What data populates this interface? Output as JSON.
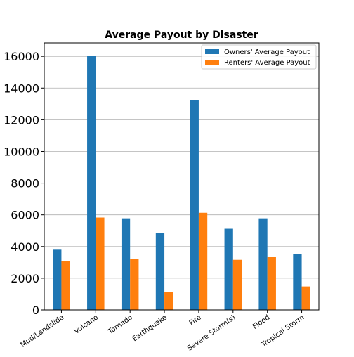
{
  "chart_data": {
    "type": "bar",
    "title": "Average Payout by Disaster",
    "xlabel": "",
    "ylabel": "",
    "categories": [
      "Mud/Landslide",
      "Volcano",
      "Tornado",
      "Earthquake",
      "Fire",
      "Severe Storm(s)",
      "Flood",
      "Tropical Storm"
    ],
    "series": [
      {
        "name": "Owners' Average Payout",
        "color": "#1f77b4",
        "values": [
          3800,
          16050,
          5780,
          4850,
          13230,
          5120,
          5780,
          3520
        ]
      },
      {
        "name": "Renters' Average Payout",
        "color": "#ff7f0e",
        "values": [
          3080,
          5830,
          3210,
          1120,
          6130,
          3160,
          3330,
          1480
        ]
      }
    ],
    "ylim": [
      0,
      16850
    ],
    "yticks": [
      0,
      2000,
      4000,
      6000,
      8000,
      10000,
      12000,
      14000,
      16000
    ],
    "grid": "y",
    "legend_position": "top-right"
  }
}
